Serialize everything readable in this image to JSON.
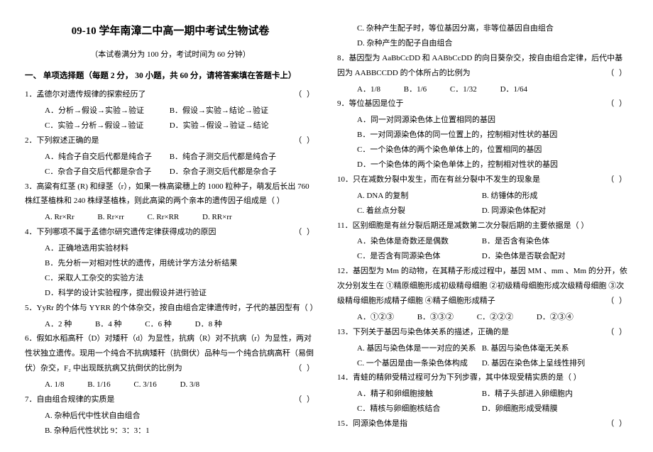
{
  "title": "09-10 学年南漳二中高一期中考试生物试卷",
  "subtitle": "（本试卷满分为 100 分，考试时间为 60 分钟）",
  "section1": "一、 单项选择题（每题 2 分， 30 小题，共 60 分，请将答案填在答题卡上）",
  "q1": {
    "stem": "1．孟德尔对遗传规律的探索经历了",
    "a": "A．分析→假设→实验→验证",
    "b": "B．假设→实验→结论→验证",
    "c": "C．实验→分析→假设→验证",
    "d": "D．实验→假设→验证→结论"
  },
  "q2": {
    "stem": "2．下列叙述正确的是",
    "a": "A．纯合子自交后代都是纯合子",
    "b": "B．纯合子测交后代都是纯合子",
    "c": "C．杂合子自交后代都是杂合子",
    "d": "D．杂合子测交后代都是杂合子"
  },
  "q3": {
    "stem": "3．高粱有红茎 (R) 和绿茎（r），如果一株高粱穗上的 1000 粒种子，萌发后长出 760 株红茎植株和 240 株绿茎植株，则此高粱的两个亲本的遗传因子组成是（  ）",
    "a": "A. Rr×Rr",
    "b": "B. Rr×rr",
    "c": "C. Rr×RR",
    "d": "D. RR×rr"
  },
  "q4": {
    "stem": "4．下列哪项不属于孟德尔研究遗传定律获得成功的原因",
    "a": "A．正确地选用实验材料",
    "b": "B．先分析一对相对性状的遗传，用统计学方法分析结果",
    "c": "C．采取人工杂交的实验方法",
    "d": "D．科学的设计实验程序，提出假设并进行验证"
  },
  "q5": {
    "stem": "5．YyRr 的个体与 YYRR 的个体杂交，按自由组合定律遗传时，子代的基因型有（  ）",
    "a": "A．2 种",
    "b": "B．4 种",
    "c": "C．6 种",
    "d": "D．8 种"
  },
  "q6": {
    "stem": "6．假如水稻高秆（D）对矮秆（d）为显性，抗病（R）对不抗病（r）为显性，两对性状独立遗传。现用一个纯合不抗病矮秆（抗倒伏）品种与一个纯合抗病高秆（易倒伏）杂交，F₂ 中出现既抗病又抗倒伏的比例为",
    "a": "A. 1/8",
    "b": "B. 1/16",
    "c": "C. 3/16",
    "d": "D. 3/8"
  },
  "q7": {
    "stem": "7．自由组合规律的实质是",
    "a": "A. 杂种后代中性状自由组合",
    "b": "B. 杂种后代性状比 9：3：3：1",
    "c": "C. 杂种产生配子时，等位基因分离，非等位基因自由组合",
    "d": "D. 杂种产生的配子自由组合"
  },
  "q8": {
    "stem": "8．基因型为 AaBbCcDD 和 AABbCcDD 的向日葵杂交，按自由组合定律，后代中基因为 AABBCCDD 的个体所占的比例为",
    "a": "A．1/8",
    "b": "B．1/6",
    "c": "C．1/32",
    "d": "D．1/64"
  },
  "q9": {
    "stem": "9．等位基因是位于",
    "a": "A．同一对同源染色体上位置相同的基因",
    "b": "B．一对同源染色体的同一位置上的，控制相对性状的基因",
    "c": "C．一个染色体的两个染色单体上的，位置相同的基因",
    "d": "D．一个染色体的两个染色单体上的，控制相对性状的基因"
  },
  "q10": {
    "stem": "10．只在减数分裂中发生，而在有丝分裂中不发生的现象是",
    "a": "A. DNA 的复制",
    "b": "B. 纺锤体的形成",
    "c": "C. 着丝点分裂",
    "d": "D. 同源染色体配对"
  },
  "q11": {
    "stem": "11．区别细胞是有丝分裂后期还是减数第二次分裂后期的主要依据是（  ）",
    "a": "A．染色体是奇数还是偶数",
    "b": "B．是否含有染色体",
    "c": "C．是否含有同源染色体",
    "d": "D．染色体是否联会配对"
  },
  "q12": {
    "stem": "12．基因型为 Mm 的动物，在其精子形成过程中，基因 MM 、mm 、Mm 的分开，依次分别发生在  ①精原细胞形成初级精母细胞  ②初级精母细胞形成次级精母细胞  ③次级精母细胞形成精子细胞  ④精子细胞形成精子",
    "a": "A．①②③",
    "b": "B．③③②",
    "c": "C．②②②",
    "d": "D．②③④"
  },
  "q13": {
    "stem": "13．下列关于基因与染色体关系的描述，正确的是",
    "a": "A. 基因与染色体是一一对应的关系",
    "b": "B. 基因与染色体毫无关系",
    "c": "C. 一个基因是由一条染色体构成",
    "d": "D. 基因在染色体上呈线性排列"
  },
  "q14": {
    "stem": "14．青蛙的精卵受精过程可分为下列步骤，其中体现受精实质的是（  ）",
    "a": "A．精子和卵细胞接触",
    "b": "B．精子头部进入卵细胞内",
    "c": "C．精核与卵细胞核结合",
    "d": "D．卵细胞形成受精膜"
  },
  "q15": {
    "stem": "15．同源染色体是指"
  },
  "paren": "（    ）"
}
